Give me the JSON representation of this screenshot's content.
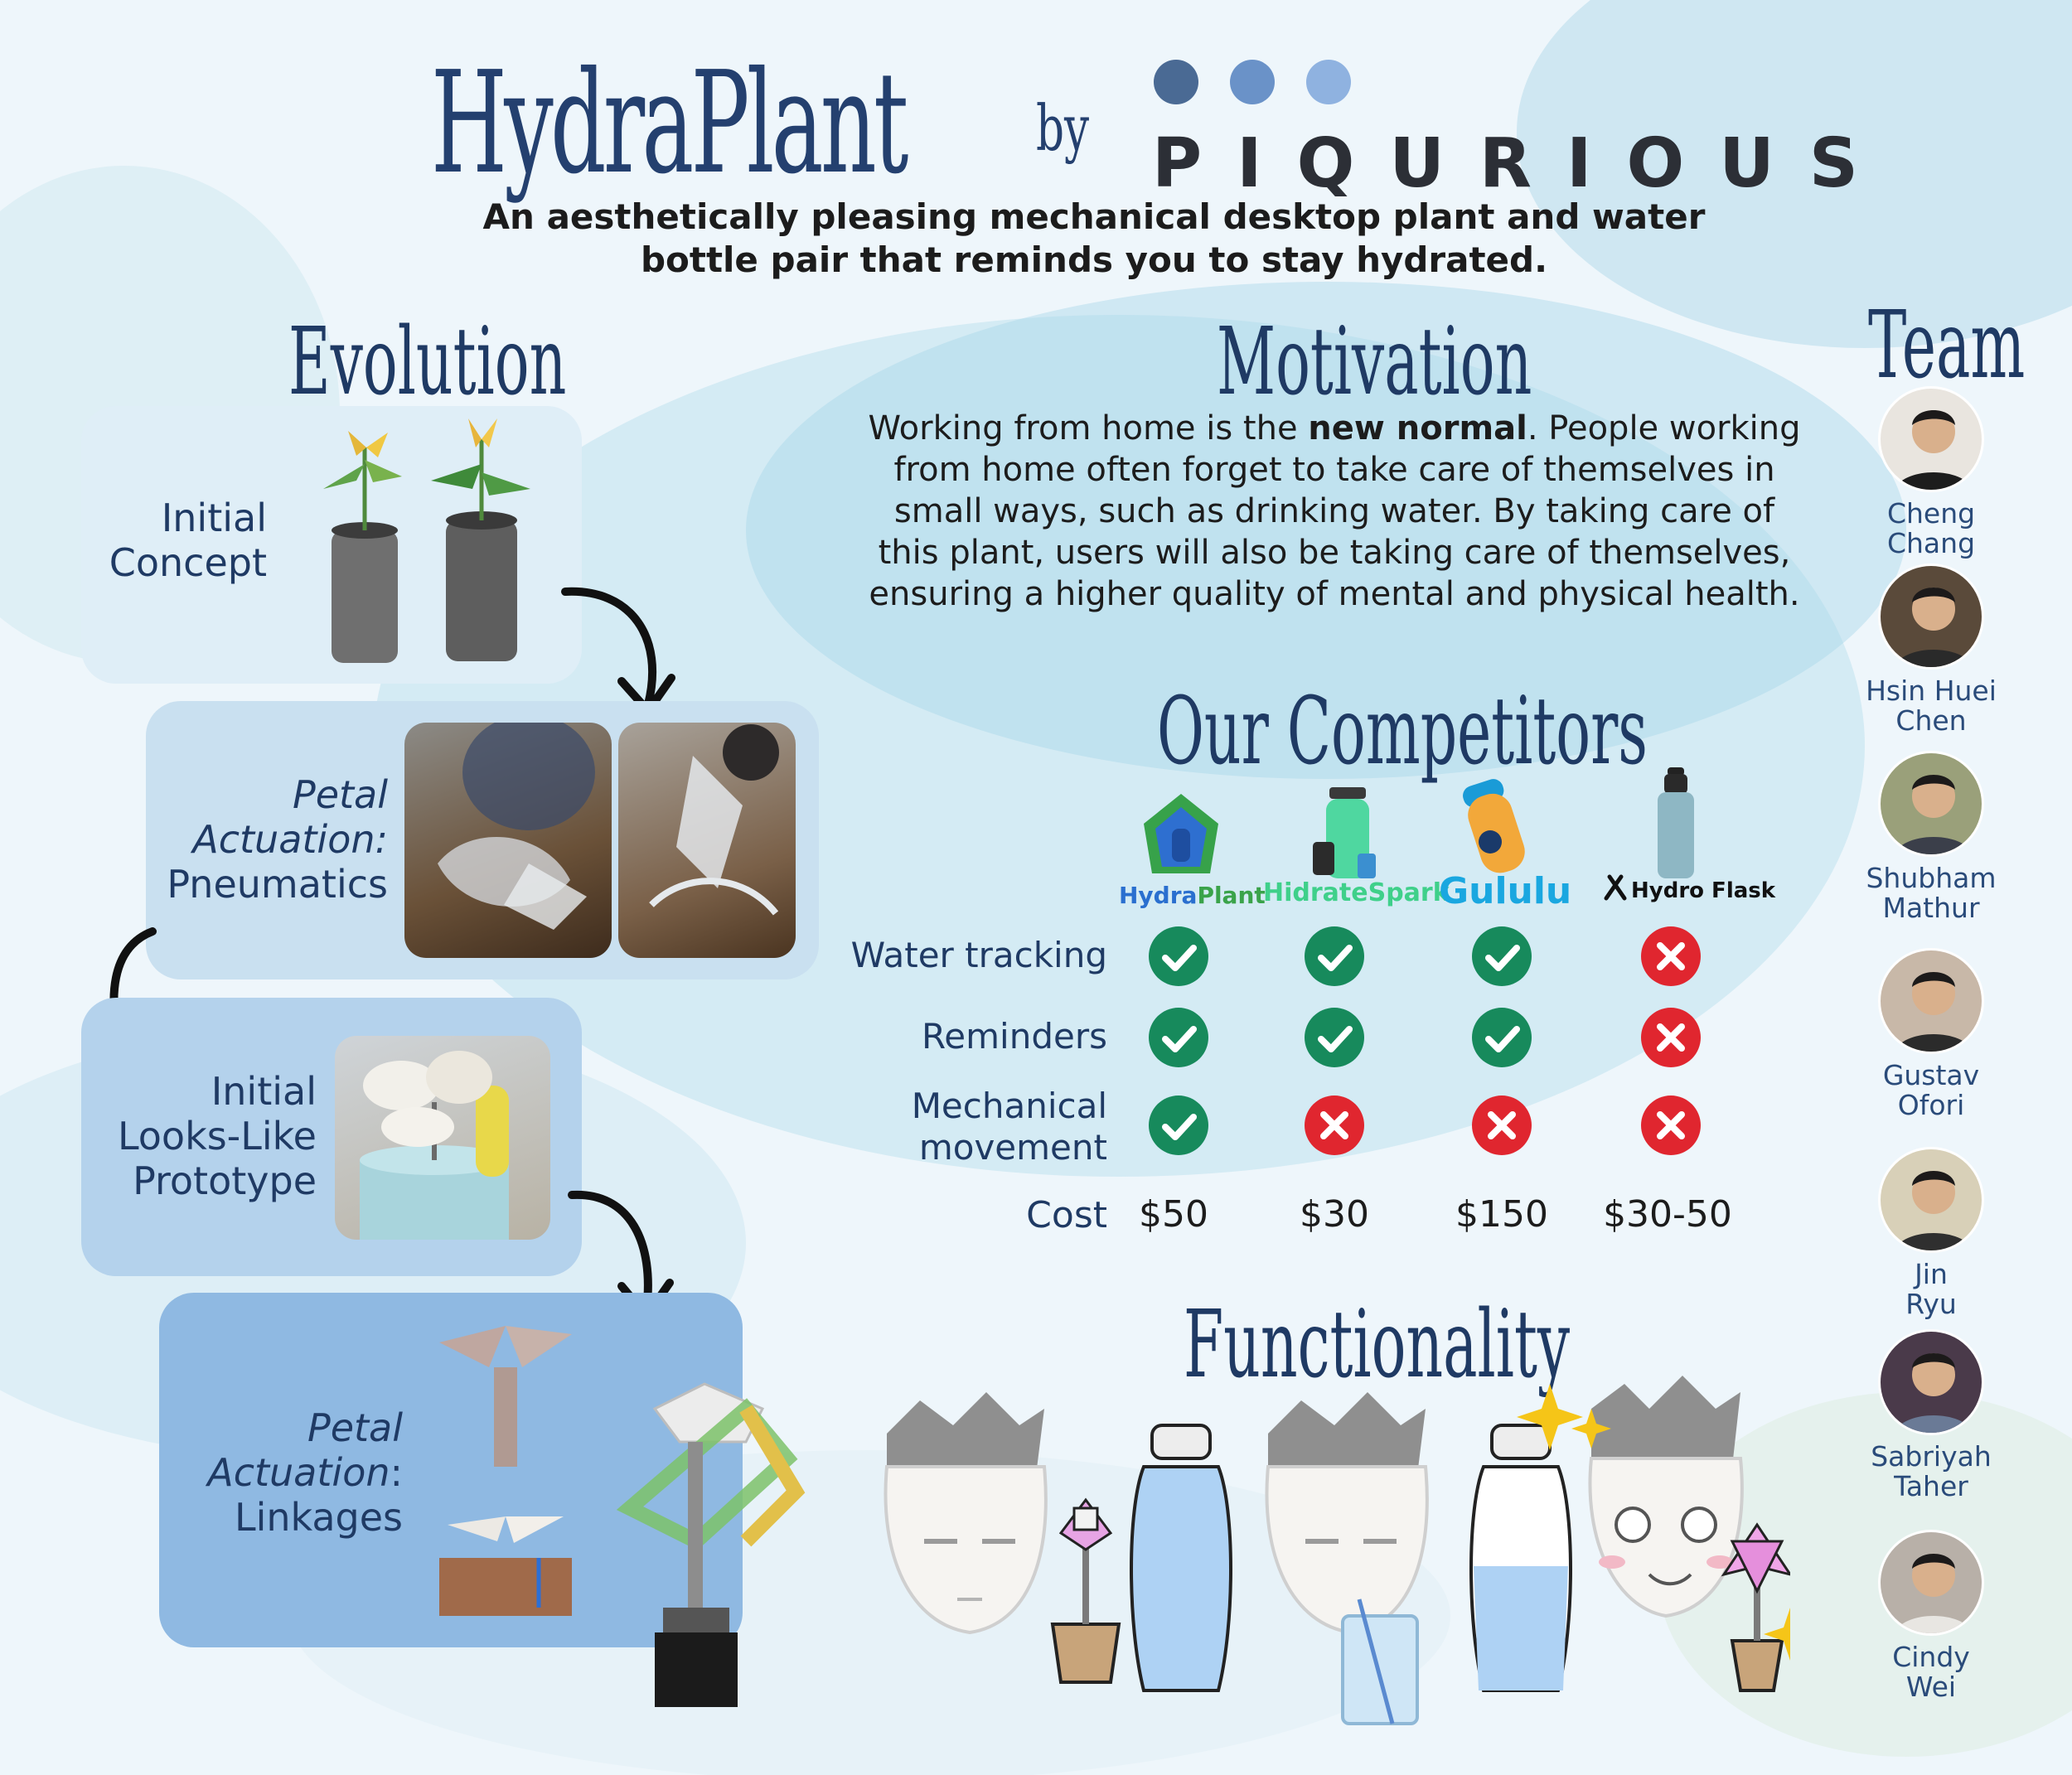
{
  "header": {
    "title": "HydraPlant",
    "by": "by",
    "brand": "PIQURIOUS",
    "brand_dot_colors": [
      "#4a6a94",
      "#6a92c8",
      "#8fb2e0"
    ],
    "tagline_line1": "An aesthetically pleasing mechanical desktop plant and water",
    "tagline_line2": "bottle pair that reminds you to stay hydrated."
  },
  "evolution": {
    "heading": "Evolution",
    "stages": [
      {
        "line1": "Initial",
        "line2": "Concept"
      },
      {
        "line1": "Petal",
        "line2": "Actuation:",
        "line3": "Pneumatics"
      },
      {
        "line1": "Initial",
        "line2": "Looks-Like",
        "line3": "Prototype"
      },
      {
        "line1": "Petal",
        "line2": "Actuation",
        "line2_suffix": ":",
        "line3": "Linkages"
      }
    ]
  },
  "motivation": {
    "heading": "Motivation",
    "text_before": "Working from home is the ",
    "text_bold": "new normal",
    "text_after": ". People working from home often forget to take care of themselves in small ways, such as drinking water. By taking care of this plant, users will also be taking care of themselves, ensuring a higher quality of mental and physical health."
  },
  "competitors": {
    "heading": "Our Competitors",
    "products": [
      {
        "part1": "Hydra",
        "part2": "Plant",
        "color1": "#2a6fcf",
        "color2": "#3aa34a"
      },
      {
        "part1": "HidrateSpark",
        "color1": "#3fd08a"
      },
      {
        "part1": "Gululu",
        "color1": "#1aa7e0"
      },
      {
        "part1": "Hydro Flask",
        "color1": "#111111"
      }
    ],
    "rows": [
      {
        "label_line1": "Water tracking",
        "label_line2": "",
        "marks": [
          "check",
          "check",
          "check",
          "cross"
        ]
      },
      {
        "label_line1": "Reminders",
        "label_line2": "",
        "marks": [
          "check",
          "check",
          "check",
          "cross"
        ]
      },
      {
        "label_line1": "Mechanical",
        "label_line2": "movement",
        "marks": [
          "check",
          "cross",
          "cross",
          "cross"
        ]
      }
    ],
    "cost_label": "Cost",
    "costs": [
      "$50",
      "$30",
      "$150",
      "$30-50"
    ],
    "check_color": "#178a5c",
    "cross_color": "#e0262f"
  },
  "functionality": {
    "heading": "Functionality"
  },
  "team": {
    "heading": "Team",
    "members": [
      {
        "line1": "Cheng",
        "line2": "Chang"
      },
      {
        "line1": "Hsin Huei",
        "line2": "Chen"
      },
      {
        "line1": "Shubham",
        "line2": "Mathur"
      },
      {
        "line1": "Gustav",
        "line2": "Ofori"
      },
      {
        "line1": "Jin",
        "line2": "Ryu"
      },
      {
        "line1": "Sabriyah",
        "line2": "Taher"
      },
      {
        "line1": "Cindy",
        "line2": "Wei"
      }
    ]
  }
}
